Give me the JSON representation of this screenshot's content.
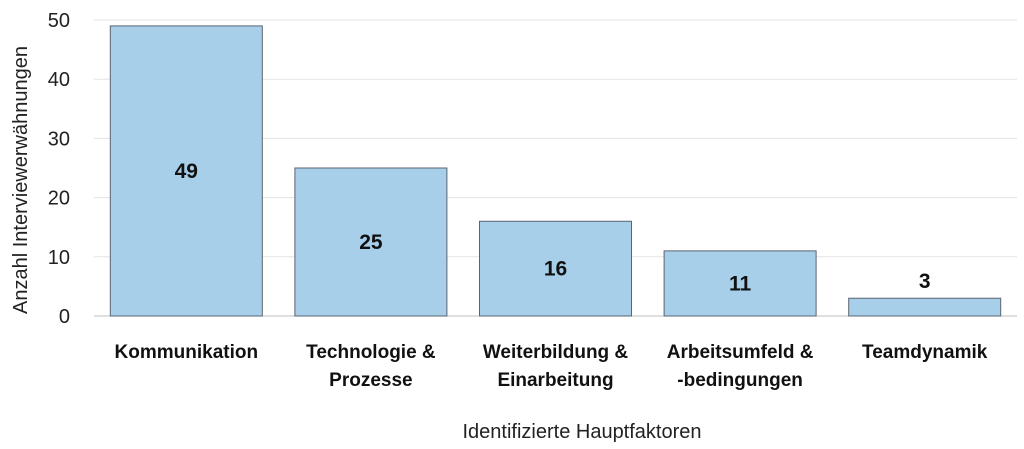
{
  "chart_data": {
    "type": "bar",
    "categories": [
      [
        "Kommunikation"
      ],
      [
        "Technologie &",
        "Prozesse"
      ],
      [
        "Weiterbildung &",
        "Einarbeitung"
      ],
      [
        "Arbeitsumfeld &",
        "-bedingungen"
      ],
      [
        "Teamdynamik"
      ]
    ],
    "values": [
      49,
      25,
      16,
      11,
      3
    ],
    "ylim": [
      0,
      50
    ],
    "yticks": [
      0,
      10,
      20,
      30,
      40,
      50
    ],
    "xlabel": "Identifizierte Hauptfaktoren",
    "ylabel": "Anzahl Interviewerwähnungen",
    "grid": true,
    "colors": {
      "bar": "#a7cfea",
      "bar_edge": "#5a6470"
    }
  }
}
